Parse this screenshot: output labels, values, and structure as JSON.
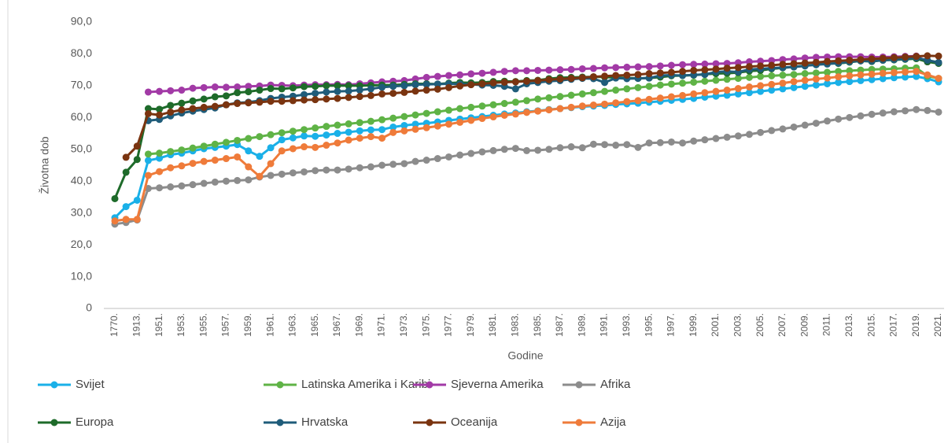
{
  "chart_data": {
    "type": "line",
    "y_label": "Životna dob",
    "x_label": "Godine",
    "categories": [
      "1770.",
      null,
      "1913.",
      null,
      "1951.",
      null,
      "1953.",
      null,
      "1955.",
      null,
      "1957.",
      null,
      "1959.",
      null,
      "1961.",
      null,
      "1963.",
      null,
      "1965.",
      null,
      "1967.",
      null,
      "1969.",
      null,
      "1971.",
      null,
      "1973.",
      null,
      "1975.",
      null,
      "1977.",
      null,
      "1979.",
      null,
      "1981.",
      null,
      "1983.",
      null,
      "1985.",
      null,
      "1987.",
      null,
      "1989.",
      null,
      "1991.",
      null,
      "1993.",
      null,
      "1995.",
      null,
      "1997.",
      null,
      "1999.",
      null,
      "2001.",
      null,
      "2003.",
      null,
      "2005.",
      null,
      "2007.",
      null,
      "2009.",
      null,
      "2011.",
      null,
      "2013.",
      null,
      "2015.",
      null,
      "2017.",
      null,
      "2019.",
      null,
      "2021."
    ],
    "ylim": [
      0,
      90
    ],
    "yticks": [
      0,
      {
        "value": 10,
        "label": "10,0"
      },
      {
        "value": 20,
        "label": "20,0"
      },
      {
        "value": 30,
        "label": "30,0"
      },
      {
        "value": 40,
        "label": "40,0"
      },
      {
        "value": 50,
        "label": "50,0"
      },
      {
        "value": 60,
        "label": "60,0"
      },
      {
        "value": 70,
        "label": "70,0"
      },
      {
        "value": 80,
        "label": "80,0"
      },
      {
        "value": 90,
        "label": "90,0"
      }
    ],
    "grid": false,
    "legend": "bottom",
    "series": [
      {
        "name": "Svijet",
        "color": "#1ab0e8",
        "values": [
          28.5,
          32,
          34,
          46.5,
          47.2,
          48.3,
          48.8,
          49.5,
          50.2,
          50.6,
          51,
          51.5,
          49.5,
          47.8,
          50.5,
          53,
          53.6,
          54.2,
          54.1,
          54.5,
          55,
          55.4,
          55.8,
          56.1,
          56.2,
          57,
          57.5,
          57.9,
          58.2,
          58.6,
          59.1,
          59.5,
          59.9,
          60.3,
          60.7,
          61.1,
          61.4,
          61.8,
          62.1,
          62.5,
          62.8,
          63.1,
          63.4,
          63.6,
          63.8,
          64.1,
          64.3,
          64.5,
          64.8,
          65.1,
          65.4,
          65.7,
          66,
          66.4,
          66.7,
          67,
          67.4,
          67.8,
          68.2,
          68.6,
          69,
          69.4,
          69.8,
          70.2,
          70.6,
          71,
          71.3,
          71.6,
          71.9,
          72.2,
          72.5,
          72.7,
          72.9,
          72.2,
          71.2
        ]
      },
      {
        "name": "Latinska Amerika i Karibi",
        "color": "#5fb346",
        "values": [
          null,
          null,
          null,
          48.5,
          48.8,
          49.3,
          49.8,
          50.4,
          51,
          51.6,
          52.2,
          52.8,
          53.4,
          54,
          54.6,
          55.2,
          55.7,
          56.2,
          56.7,
          57.2,
          57.6,
          58,
          58.4,
          58.8,
          59.3,
          59.8,
          60.3,
          60.8,
          61.3,
          61.8,
          62.3,
          62.8,
          63.2,
          63.6,
          64,
          64.4,
          64.8,
          65.3,
          65.8,
          66.2,
          66.6,
          67,
          67.4,
          67.8,
          68.2,
          68.6,
          69,
          69.4,
          69.8,
          70.2,
          70.5,
          70.8,
          71.1,
          71.4,
          71.7,
          72,
          72.3,
          72.6,
          72.9,
          73.1,
          73.3,
          73.5,
          73.8,
          74,
          74.2,
          74.5,
          74.7,
          74.9,
          75.1,
          75.2,
          75.3,
          75.5,
          75.6,
          73,
          72.3
        ]
      },
      {
        "name": "Sjeverna Amerika",
        "color": "#a23aa6",
        "values": [
          null,
          null,
          null,
          68,
          68.2,
          68.4,
          68.6,
          69.2,
          69.4,
          69.6,
          69.5,
          69.6,
          69.8,
          69.9,
          70.2,
          70.1,
          70,
          70.2,
          70.3,
          70.3,
          70.4,
          70.3,
          70.6,
          70.9,
          71.2,
          71.4,
          71.6,
          72.1,
          72.6,
          72.9,
          73.2,
          73.4,
          73.7,
          73.9,
          74.2,
          74.5,
          74.7,
          74.7,
          74.8,
          74.9,
          75,
          75.1,
          75.3,
          75.4,
          75.6,
          75.7,
          75.8,
          75.9,
          76,
          76.2,
          76.4,
          76.6,
          76.7,
          76.8,
          76.9,
          77,
          77.2,
          77.5,
          77.7,
          77.9,
          78.2,
          78.4,
          78.7,
          78.9,
          79,
          79.1,
          79.1,
          79.1,
          79,
          79,
          79.1,
          79.2,
          79.3,
          77.5,
          77.2
        ]
      },
      {
        "name": "Afrika",
        "color": "#8c8c8c",
        "values": [
          26.5,
          27,
          27.8,
          37.7,
          37.9,
          38.2,
          38.5,
          38.9,
          39.3,
          39.7,
          40,
          40.2,
          40.4,
          41.3,
          41.8,
          42.2,
          42.6,
          42.9,
          43.3,
          43.5,
          43.5,
          43.8,
          44.2,
          44.5,
          45,
          45.3,
          45.5,
          46.2,
          46.6,
          47.1,
          47.6,
          48.2,
          48.7,
          49.2,
          49.6,
          50,
          50.3,
          49.6,
          49.7,
          50,
          50.5,
          50.8,
          50.5,
          51.6,
          51.5,
          51.3,
          51.5,
          50.6,
          52,
          52.1,
          52.3,
          52,
          52.6,
          53,
          53.4,
          53.8,
          54.2,
          54.7,
          55.3,
          55.9,
          56.4,
          57,
          57.6,
          58.2,
          58.9,
          59.5,
          60,
          60.5,
          61,
          61.4,
          61.8,
          62.1,
          62.5,
          62.2,
          61.7
        ]
      },
      {
        "name": "Europa",
        "color": "#1e6b2a",
        "values": [
          34.5,
          42.8,
          46.8,
          62.8,
          62.6,
          63.8,
          64.5,
          65.2,
          65.8,
          66.5,
          66.8,
          67.8,
          68.1,
          68.6,
          69.1,
          69,
          69.3,
          69.7,
          69.8,
          70,
          70,
          70,
          70,
          70.1,
          70.2,
          70.2,
          70.4,
          70.6,
          70.6,
          70.5,
          70.8,
          71,
          70.9,
          71,
          71.3,
          71.4,
          71.3,
          71.6,
          71.7,
          72.2,
          72.5,
          72.6,
          72.7,
          72.8,
          72.7,
          72.6,
          72.4,
          72.3,
          72.4,
          72.7,
          73.1,
          73.2,
          73.3,
          73.6,
          73.8,
          73.9,
          74.1,
          74.6,
          74.8,
          75.3,
          75.6,
          75.9,
          76.3,
          76.6,
          77,
          77,
          77.4,
          77.8,
          77.6,
          78,
          78.1,
          78.3,
          78.5,
          77.5,
          77
        ]
      },
      {
        "name": "Hrvatska",
        "color": "#1f5c7a",
        "values": [
          null,
          null,
          null,
          59,
          59.4,
          60.5,
          61.4,
          62,
          62.5,
          63,
          64,
          64.6,
          64.8,
          65.3,
          66,
          66.4,
          66.7,
          67.2,
          67.6,
          68,
          68.2,
          68.3,
          68.6,
          69,
          69.5,
          69.8,
          70,
          70.3,
          70.4,
          70.5,
          70.6,
          70.5,
          70.4,
          70.2,
          70.1,
          69.8,
          69,
          70.6,
          71,
          71.4,
          71.6,
          72,
          72.3,
          72.2,
          71,
          72.4,
          72.2,
          72.3,
          72.4,
          73.2,
          73.3,
          73.2,
          73.4,
          73.5,
          74.3,
          74.5,
          74.3,
          75.1,
          75.3,
          75.5,
          75.7,
          75.9,
          76.2,
          76.6,
          76.8,
          77.1,
          77.5,
          77.8,
          77.7,
          78,
          78.2,
          78.4,
          78.8,
          78,
          77.3
        ]
      },
      {
        "name": "Oceanija",
        "color": "#7a3410",
        "values": [
          null,
          47.5,
          51,
          61.2,
          60.8,
          61.7,
          62.4,
          62.8,
          63.2,
          63.5,
          64,
          64.4,
          64.6,
          64.8,
          65.1,
          65.1,
          65.3,
          65.5,
          65.6,
          65.8,
          66,
          66.3,
          66.6,
          66.9,
          67.4,
          67.6,
          67.9,
          68.3,
          68.6,
          68.9,
          69.4,
          69.9,
          70.3,
          70.6,
          70.9,
          71.1,
          71.2,
          71.4,
          71.6,
          71.9,
          72.1,
          72.3,
          72.5,
          72.8,
          73,
          73.2,
          73.3,
          73.5,
          73.8,
          74,
          74.2,
          74.5,
          74.8,
          75,
          75.2,
          75.5,
          75.7,
          76,
          76.2,
          76.4,
          76.7,
          76.9,
          77.1,
          77.3,
          77.6,
          77.8,
          78,
          78.2,
          78.4,
          78.6,
          78.8,
          79,
          79.2,
          79.4,
          79.3
        ]
      },
      {
        "name": "Azija",
        "color": "#ef7b3a",
        "values": [
          27.5,
          28,
          28,
          41.8,
          43,
          44.2,
          44.8,
          45.6,
          46.2,
          46.6,
          47.1,
          47.6,
          44.5,
          41.5,
          45.5,
          49.5,
          50.2,
          50.8,
          50.6,
          51.3,
          52,
          52.9,
          53.5,
          54,
          53.5,
          55.3,
          55.8,
          56.3,
          56.8,
          57.3,
          57.9,
          58.5,
          59.1,
          59.7,
          60.2,
          60.7,
          61.1,
          61.6,
          62,
          62.4,
          62.8,
          63.2,
          63.6,
          63.9,
          64.2,
          64.6,
          65,
          65.3,
          65.7,
          66.1,
          66.5,
          66.9,
          67.4,
          67.8,
          68.2,
          68.6,
          69.1,
          69.6,
          70,
          70.4,
          70.8,
          71.3,
          71.7,
          72.1,
          72.4,
          72.8,
          73.1,
          73.4,
          73.6,
          73.9,
          74.1,
          74.3,
          74.5,
          73.4,
          72.3
        ]
      }
    ]
  }
}
